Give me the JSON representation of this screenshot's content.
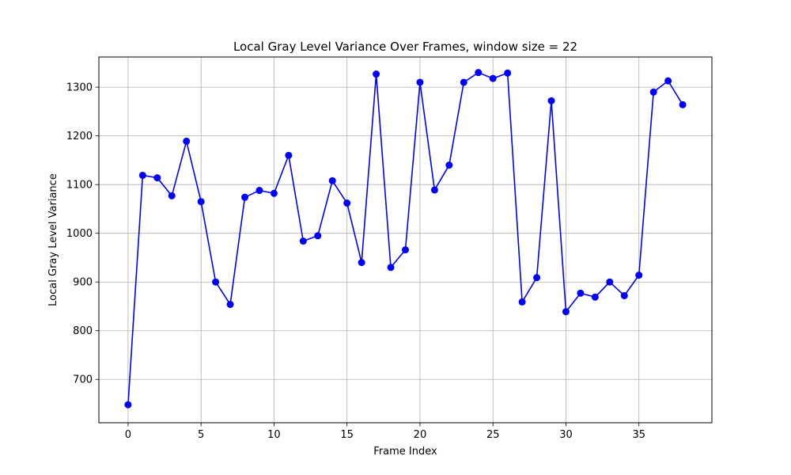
{
  "chart_data": {
    "type": "line",
    "title": "Local Gray Level Variance Over Frames, window size = 22",
    "xlabel": "Frame Index",
    "ylabel": "Local Gray Level Variance",
    "xlim": [
      -2.0,
      40.0
    ],
    "ylim": [
      611.0,
      1362.0
    ],
    "xticks": [
      0,
      5,
      10,
      15,
      20,
      25,
      30,
      35
    ],
    "yticks": [
      700,
      800,
      900,
      1000,
      1100,
      1200,
      1300
    ],
    "grid": true,
    "series": [
      {
        "color": "#0000ff",
        "marker": "circle",
        "x": [
          0,
          1,
          2,
          3,
          4,
          5,
          6,
          7,
          8,
          9,
          10,
          11,
          12,
          13,
          14,
          15,
          16,
          17,
          18,
          19,
          20,
          21,
          22,
          23,
          24,
          25,
          26,
          27,
          28,
          29,
          30,
          31,
          32,
          33,
          34,
          35,
          36,
          37,
          38
        ],
        "y": [
          648,
          1119,
          1114,
          1077,
          1189,
          1065,
          900,
          854,
          1074,
          1088,
          1082,
          1160,
          984,
          995,
          1108,
          1062,
          940,
          1327,
          930,
          966,
          1310,
          1089,
          1140,
          1310,
          1330,
          1318,
          1329,
          859,
          909,
          1272,
          839,
          877,
          869,
          900,
          872,
          914,
          1290,
          1313,
          1264
        ]
      }
    ]
  }
}
